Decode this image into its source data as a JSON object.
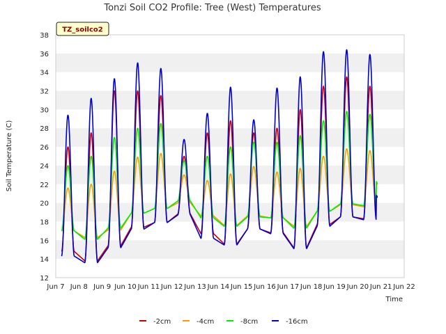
{
  "chart_data": {
    "type": "line",
    "title": "Tonzi Soil CO2 Profile: Tree (West) Temperatures",
    "xlabel": "Time",
    "ylabel": "Soil Temperature (C)",
    "badge": "TZ_soilco2",
    "xlim": [
      7,
      22
    ],
    "ylim": [
      12,
      38
    ],
    "x_ticks": [
      7,
      8,
      9,
      10,
      11,
      12,
      13,
      14,
      15,
      16,
      17,
      18,
      19,
      20,
      21,
      22
    ],
    "x_tick_labels": [
      "Jun 7",
      "Jun 8",
      "Jun 9",
      "Jun 10",
      "Jun 11",
      "Jun 12",
      "Jun 13",
      "Jun 14",
      "Jun 15",
      "Jun 16",
      "Jun 17",
      "Jun 18",
      "Jun 19",
      "Jun 20",
      "Jun 21",
      "Jun 22"
    ],
    "y_ticks": [
      12,
      14,
      16,
      18,
      20,
      22,
      24,
      26,
      28,
      30,
      32,
      34,
      36,
      38
    ],
    "grid": "horizontal alternating bands",
    "legend_position": "bottom",
    "days": [
      7.5,
      8.5,
      9.5,
      10.5,
      11.5,
      12.5,
      13.5,
      14.5,
      15.5,
      16.5,
      17.5,
      18.5,
      19.5,
      20.5
    ],
    "series": [
      {
        "name": "-2cm",
        "color": "#cc0000",
        "x_start": 7.25,
        "x_end": 20.85,
        "min": [
          14.8,
          13.8,
          15.4,
          17.4,
          17.9,
          18.8,
          16.7,
          15.6,
          17.2,
          16.8,
          15.2,
          17.7,
          18.5,
          18.3
        ],
        "max": [
          26.0,
          27.5,
          32.0,
          32.0,
          31.5,
          25.0,
          27.5,
          28.8,
          27.5,
          28.0,
          30.0,
          32.5,
          33.5,
          32.5
        ]
      },
      {
        "name": "-4cm",
        "color": "#ff9900",
        "x_start": 7.25,
        "x_end": 20.85,
        "min": [
          17.0,
          16.3,
          17.1,
          18.9,
          19.4,
          20.0,
          18.6,
          17.6,
          18.6,
          18.4,
          17.5,
          19.1,
          19.8,
          19.6
        ],
        "max": [
          21.6,
          22.0,
          23.4,
          24.9,
          25.3,
          23.0,
          22.4,
          23.1,
          23.9,
          23.3,
          23.7,
          25.0,
          25.8,
          25.6
        ]
      },
      {
        "name": "-8cm",
        "color": "#00ee00",
        "x_start": 7.25,
        "x_end": 20.85,
        "min": [
          17.0,
          16.1,
          17.3,
          18.9,
          19.4,
          20.2,
          18.4,
          17.5,
          18.5,
          18.4,
          17.3,
          19.1,
          19.9,
          19.7
        ],
        "max": [
          24.0,
          25.0,
          27.0,
          28.0,
          28.5,
          24.5,
          25.0,
          26.0,
          26.5,
          26.5,
          27.2,
          28.8,
          29.8,
          29.5
        ]
      },
      {
        "name": "-16cm",
        "color": "#0000cc",
        "x_start": 7.25,
        "x_end": 20.85,
        "min": [
          14.3,
          13.6,
          15.2,
          17.2,
          17.9,
          18.7,
          16.2,
          15.5,
          17.2,
          16.7,
          15.1,
          17.5,
          18.5,
          18.2
        ],
        "max": [
          29.4,
          31.2,
          33.3,
          35.0,
          34.4,
          26.8,
          29.6,
          32.4,
          28.9,
          32.3,
          33.5,
          36.2,
          36.4,
          35.9
        ]
      }
    ]
  }
}
